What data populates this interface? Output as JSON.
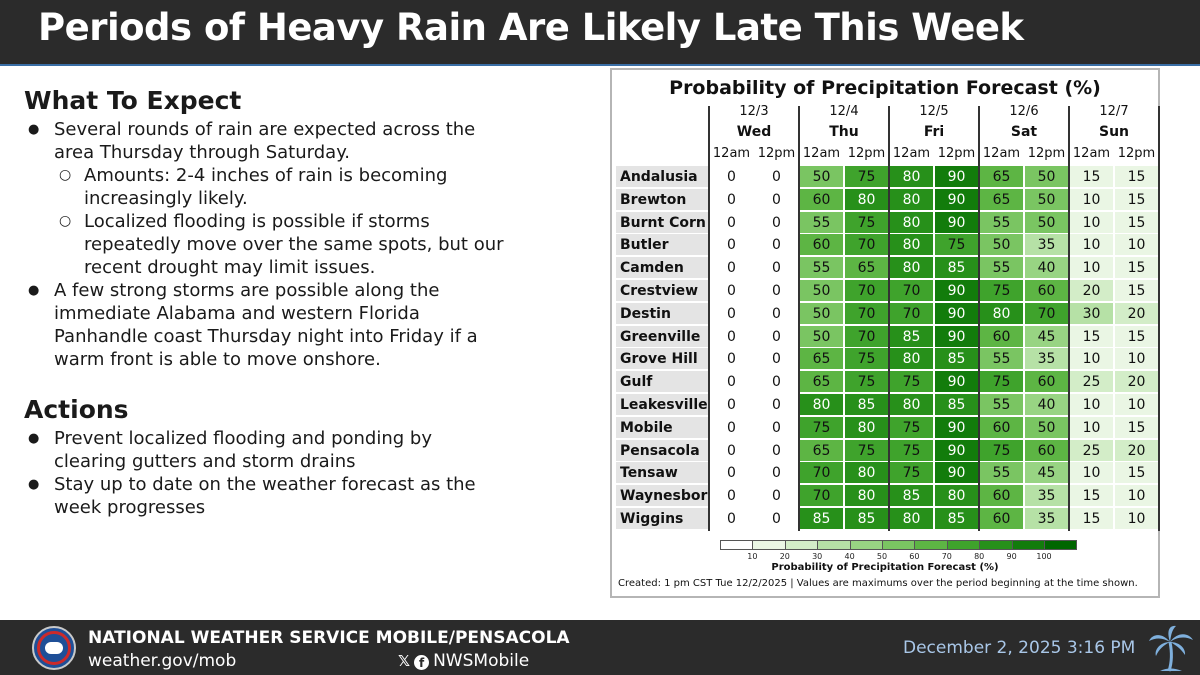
{
  "header": {
    "title": "Periods of Heavy Rain Are Likely Late This Week"
  },
  "expect": {
    "title": "What To Expect",
    "b1": "Several rounds of rain are expected across the area Thursday through Saturday.",
    "b1_sub1": "Amounts: 2-4 inches of rain is becoming increasingly likely.",
    "b1_sub2": "Localized flooding is possible if storms repeatedly move over the same spots, but our recent drought may limit issues.",
    "b2": "A few strong storms are possible along the immediate Alabama and western Florida Panhandle coast Thursday night into Friday if a warm front is able to move onshore."
  },
  "actions": {
    "title": "Actions",
    "b1": "Prevent localized flooding and ponding by clearing gutters and storm drains",
    "b2": "Stay up to date on the weather forecast as the week progresses"
  },
  "forecast": {
    "title": "Probability of Precipitation Forecast (%)",
    "days": [
      {
        "date": "12/3",
        "day": "Wed"
      },
      {
        "date": "12/4",
        "day": "Thu"
      },
      {
        "date": "12/5",
        "day": "Fri"
      },
      {
        "date": "12/6",
        "day": "Sat"
      },
      {
        "date": "12/7",
        "day": "Sun"
      }
    ],
    "times": [
      "12am",
      "12pm"
    ],
    "rows": [
      {
        "name": "Andalusia",
        "values": [
          0,
          0,
          50,
          75,
          80,
          90,
          65,
          50,
          15,
          15
        ]
      },
      {
        "name": "Brewton",
        "values": [
          0,
          0,
          60,
          80,
          80,
          90,
          65,
          50,
          10,
          15
        ]
      },
      {
        "name": "Burnt Corn",
        "values": [
          0,
          0,
          55,
          75,
          80,
          90,
          55,
          50,
          10,
          15
        ]
      },
      {
        "name": "Butler",
        "values": [
          0,
          0,
          60,
          70,
          80,
          75,
          50,
          35,
          10,
          10
        ]
      },
      {
        "name": "Camden",
        "values": [
          0,
          0,
          55,
          65,
          80,
          85,
          55,
          40,
          10,
          15
        ]
      },
      {
        "name": "Crestview",
        "values": [
          0,
          0,
          50,
          70,
          70,
          90,
          75,
          60,
          20,
          15
        ]
      },
      {
        "name": "Destin",
        "values": [
          0,
          0,
          50,
          70,
          70,
          90,
          80,
          70,
          30,
          20
        ]
      },
      {
        "name": "Greenville",
        "values": [
          0,
          0,
          50,
          70,
          85,
          90,
          60,
          45,
          15,
          15
        ]
      },
      {
        "name": "Grove Hill",
        "values": [
          0,
          0,
          65,
          75,
          80,
          85,
          55,
          35,
          10,
          10
        ]
      },
      {
        "name": "Gulf Shores",
        "values": [
          0,
          0,
          65,
          75,
          75,
          90,
          75,
          60,
          25,
          20
        ]
      },
      {
        "name": "Leakesville",
        "values": [
          0,
          0,
          80,
          85,
          80,
          85,
          55,
          40,
          10,
          10
        ]
      },
      {
        "name": "Mobile",
        "values": [
          0,
          0,
          75,
          80,
          75,
          90,
          60,
          50,
          10,
          15
        ]
      },
      {
        "name": "Pensacola",
        "values": [
          0,
          0,
          65,
          75,
          75,
          90,
          75,
          60,
          25,
          20
        ]
      },
      {
        "name": "Tensaw",
        "values": [
          0,
          0,
          70,
          80,
          75,
          90,
          55,
          45,
          10,
          15
        ]
      },
      {
        "name": "Waynesboro",
        "values": [
          0,
          0,
          70,
          80,
          85,
          80,
          60,
          35,
          15,
          10
        ]
      },
      {
        "name": "Wiggins",
        "values": [
          0,
          0,
          85,
          85,
          80,
          85,
          60,
          35,
          15,
          10
        ]
      }
    ],
    "legend": {
      "ticks": [
        "10",
        "20",
        "30",
        "40",
        "50",
        "60",
        "70",
        "80",
        "90",
        "100"
      ],
      "title": "Probability of Precipitation Forecast (%)",
      "colors": [
        "#ffffff",
        "#eaf6e4",
        "#d3edc8",
        "#b6e1a6",
        "#98d483",
        "#7ac562",
        "#5db544",
        "#3fa32c",
        "#27901a",
        "#127c0b",
        "#006600"
      ]
    },
    "created": "Created: 1 pm CST Tue 12/2/2025  |  Values are maximums over the period beginning at the time shown."
  },
  "footer": {
    "office": "NATIONAL WEATHER SERVICE MOBILE/PENSACOLA",
    "url": "weather.gov/mob",
    "social_x": "𝕏",
    "social_fb": "f",
    "handle": "NWSMobile",
    "timestamp": "December 2, 2025  3:16 PM"
  }
}
